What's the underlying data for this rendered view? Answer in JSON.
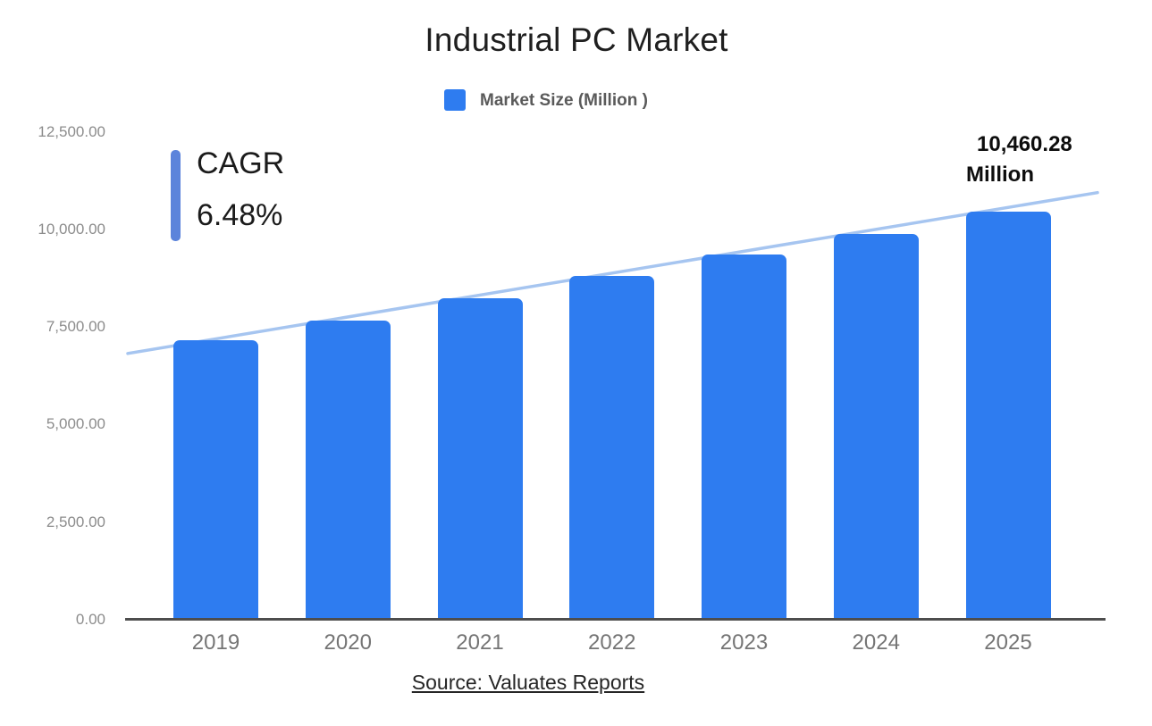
{
  "title": "Industrial PC Market",
  "legend": {
    "label": "Market Size (Million )",
    "swatch_icon": "blue-square-icon"
  },
  "cagr": {
    "label": "CAGR",
    "value": "6.48%"
  },
  "annotation": {
    "value": "10,460.28",
    "unit": "Million"
  },
  "source": {
    "text": "Source: Valuates Reports"
  },
  "colors": {
    "bar": "#2E7CF0",
    "trendline": "#A6C5F0",
    "cagr_accent": "#5C84DB",
    "axis_line": "#4D4D4D",
    "x_axis_text": "#757575",
    "y_axis_text": "#8C8C8C"
  },
  "chart_data": {
    "type": "bar",
    "title": "Industrial PC Market",
    "legend_entries": [
      "Market Size (Million )"
    ],
    "legend_position": "top",
    "categories": [
      "2019",
      "2020",
      "2021",
      "2022",
      "2023",
      "2024",
      "2025"
    ],
    "values": [
      7170,
      7660,
      8240,
      8810,
      9360,
      9890,
      10460.28
    ],
    "value_label_2025": "10,460.28 Million",
    "cagr_percent": 6.48,
    "xlabel": "",
    "ylabel": "",
    "ylim": [
      0,
      12500
    ],
    "y_ticks": [
      "0.00",
      "2,500.00",
      "5,000.00",
      "7,500.00",
      "10,000.00",
      "12,500.00"
    ],
    "y_tick_values": [
      0,
      2500,
      5000,
      7500,
      10000,
      12500
    ],
    "grid": false,
    "trendline": {
      "type": "linear",
      "start_value": 6820,
      "end_value": 10940
    },
    "source_note": "Source: Valuates Reports"
  }
}
